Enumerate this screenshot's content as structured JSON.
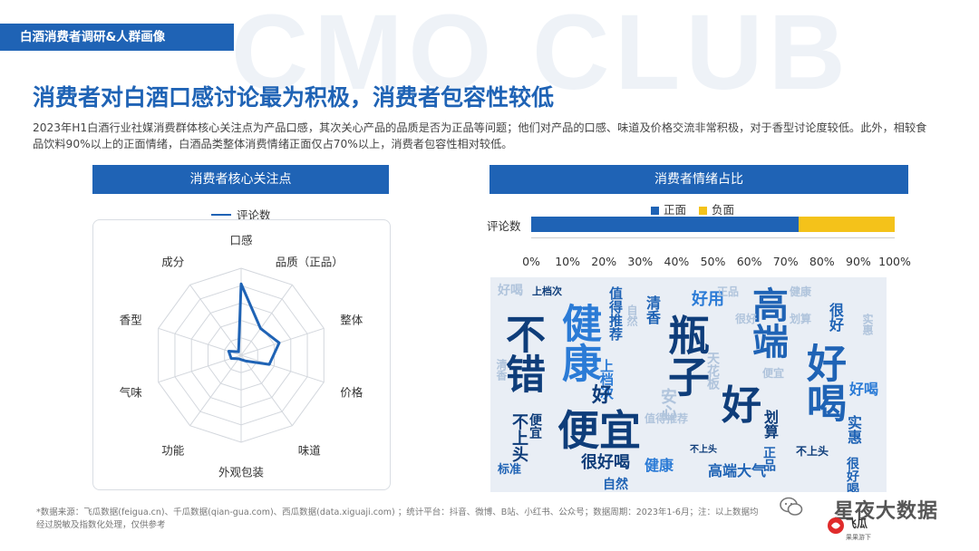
{
  "watermark": "CMO CLUB",
  "header": {
    "tab_label": "白酒消费者调研&人群画像"
  },
  "title": "消费者对白酒口感讨论最为积极，消费者包容性较低",
  "intro": "2023年H1白酒行业社媒消费群体核心关注点为产品口感，其次关心产品的品质是否为正品等问题；他们对产品的口感、味道及价格交流非常积极，对于香型讨论度较低。此外，相较食品饮料90%以上的正面情绪，白酒品类整体消费情绪正面仅占70%以上，消费者包容性相对较低。",
  "chart_data": [
    {
      "type": "radar",
      "title": "消费者核心关注点",
      "series": [
        {
          "name": "评论数",
          "color": "#1f63b5",
          "values": [
            0.82,
            0.38,
            0.46,
            0.34,
            0.08,
            0.05,
            0.05,
            0.12,
            0.15,
            0.05
          ]
        }
      ],
      "categories": [
        "口感",
        "品质（正品）",
        "整体",
        "价格",
        "味道",
        "外观包装",
        "功能",
        "气味",
        "香型",
        "成分"
      ],
      "rlim": [
        0,
        1
      ],
      "grid": true
    },
    {
      "type": "bar",
      "orientation": "horizontal",
      "stacked": true,
      "title": "消费者情绪占比",
      "categories": [
        "评论数"
      ],
      "series": [
        {
          "name": "正面",
          "color": "#1f63b5",
          "values": [
            73.5
          ]
        },
        {
          "name": "负面",
          "color": "#f4c21a",
          "values": [
            26.5
          ]
        }
      ],
      "xlim": [
        0,
        100
      ],
      "xticks": [
        "0%",
        "10%",
        "20%",
        "30%",
        "40%",
        "50%",
        "60%",
        "70%",
        "80%",
        "90%",
        "100%"
      ],
      "legend": "top"
    }
  ],
  "wordcloud": {
    "words": [
      {
        "text": "不错",
        "size": 44,
        "color": "#0e3d7a",
        "rotate": 90
      },
      {
        "text": "健康",
        "size": 44,
        "color": "#2b7bd6",
        "rotate": 90
      },
      {
        "text": "瓶子",
        "size": 46,
        "color": "#0e3d7a",
        "rotate": 90
      },
      {
        "text": "高端",
        "size": 40,
        "color": "#1f63b5",
        "rotate": 90
      },
      {
        "text": "好喝",
        "size": 44,
        "color": "#1f63b5",
        "rotate": 90
      },
      {
        "text": "便宜",
        "size": 46,
        "color": "#0e3d7a",
        "rotate": 0
      },
      {
        "text": "好",
        "size": 44,
        "color": "#0e3d7a",
        "rotate": 0
      },
      {
        "text": "值得推荐",
        "size": 15,
        "color": "#1f63b5",
        "rotate": 90
      },
      {
        "text": "好用",
        "size": 18,
        "color": "#2b7bd6",
        "rotate": 0
      },
      {
        "text": "清香",
        "size": 16,
        "color": "#1f63b5",
        "rotate": 90
      },
      {
        "text": "很好喝",
        "size": 18,
        "color": "#0e3d7a",
        "rotate": 0
      },
      {
        "text": "高端大气",
        "size": 16,
        "color": "#1f63b5",
        "rotate": 0
      },
      {
        "text": "很好",
        "size": 16,
        "color": "#1f63b5",
        "rotate": 90
      },
      {
        "text": "不上头",
        "size": 12,
        "color": "#0e3d7a",
        "rotate": 0
      },
      {
        "text": "健康",
        "size": 16,
        "color": "#2b7bd6",
        "rotate": 0
      },
      {
        "text": "实惠",
        "size": 16,
        "color": "#1f63b5",
        "rotate": 90
      },
      {
        "text": "便宜",
        "size": 14,
        "color": "#0e3d7a",
        "rotate": 90
      },
      {
        "text": "标准",
        "size": 13,
        "color": "#1f63b5",
        "rotate": 0
      },
      {
        "text": "安心",
        "size": 18,
        "color": "#b0c4dc",
        "rotate": 90
      },
      {
        "text": "划算",
        "size": 16,
        "color": "#0e3d7a",
        "rotate": 90
      },
      {
        "text": "自然",
        "size": 14,
        "color": "#1f63b5",
        "rotate": 0
      },
      {
        "text": "好喝",
        "size": 16,
        "color": "#2b7bd6",
        "rotate": 0
      },
      {
        "text": "上档次",
        "size": 15,
        "color": "#2b7bd6",
        "rotate": 90
      },
      {
        "text": "很好喝",
        "size": 14,
        "color": "#1f63b5",
        "rotate": 90
      },
      {
        "text": "不上头",
        "size": 18,
        "color": "#0e3d7a",
        "rotate": 90
      },
      {
        "text": "天花板",
        "size": 14,
        "color": "#b0c4dc",
        "rotate": 90
      },
      {
        "text": "正品",
        "size": 14,
        "color": "#1f63b5",
        "rotate": 90
      },
      {
        "text": "好",
        "size": 22,
        "color": "#0e3d7a",
        "rotate": 0
      },
      {
        "text": "不上头",
        "size": 10,
        "color": "#0e3d7a",
        "rotate": 0
      },
      {
        "text": "上档次",
        "size": 11,
        "color": "#0e3d7a",
        "rotate": 0
      },
      {
        "text": "好喝",
        "size": 14,
        "color": "#b0c4dc",
        "rotate": 0
      },
      {
        "text": "健康",
        "size": 12,
        "color": "#b0c4dc",
        "rotate": 0
      },
      {
        "text": "实惠",
        "size": 12,
        "color": "#b0c4dc",
        "rotate": 90
      },
      {
        "text": "正品",
        "size": 12,
        "color": "#b0c4dc",
        "rotate": 0
      },
      {
        "text": "值得推荐",
        "size": 12,
        "color": "#b0c4dc",
        "rotate": 0
      },
      {
        "text": "划算",
        "size": 12,
        "color": "#b0c4dc",
        "rotate": 0
      },
      {
        "text": "清香",
        "size": 12,
        "color": "#b0c4dc",
        "rotate": 90
      },
      {
        "text": "很好",
        "size": 12,
        "color": "#b0c4dc",
        "rotate": 0
      },
      {
        "text": "自然",
        "size": 12,
        "color": "#b0c4dc",
        "rotate": 90
      },
      {
        "text": "便宜",
        "size": 12,
        "color": "#b0c4dc",
        "rotate": 0
      }
    ]
  },
  "footer": {
    "line1": "*数据来源：飞瓜数据(feigua.cn)、千瓜数据(qian-gua.com)、西瓜数据(data.xiguaji.com) ；统计平台：抖音、微博、B站、小红书、公众号；数据周期：2023年1-6月；注：以上数据均",
    "line2": "经过脱敏及指数化处理，仅供参考"
  },
  "wechat": {
    "account": "星夜大数据",
    "logo_text": "飞瓜",
    "logo_subtext": "果果游下"
  },
  "colors": {
    "brand": "#1f63b5",
    "positive": "#1f63b5",
    "negative": "#f4c21a"
  }
}
